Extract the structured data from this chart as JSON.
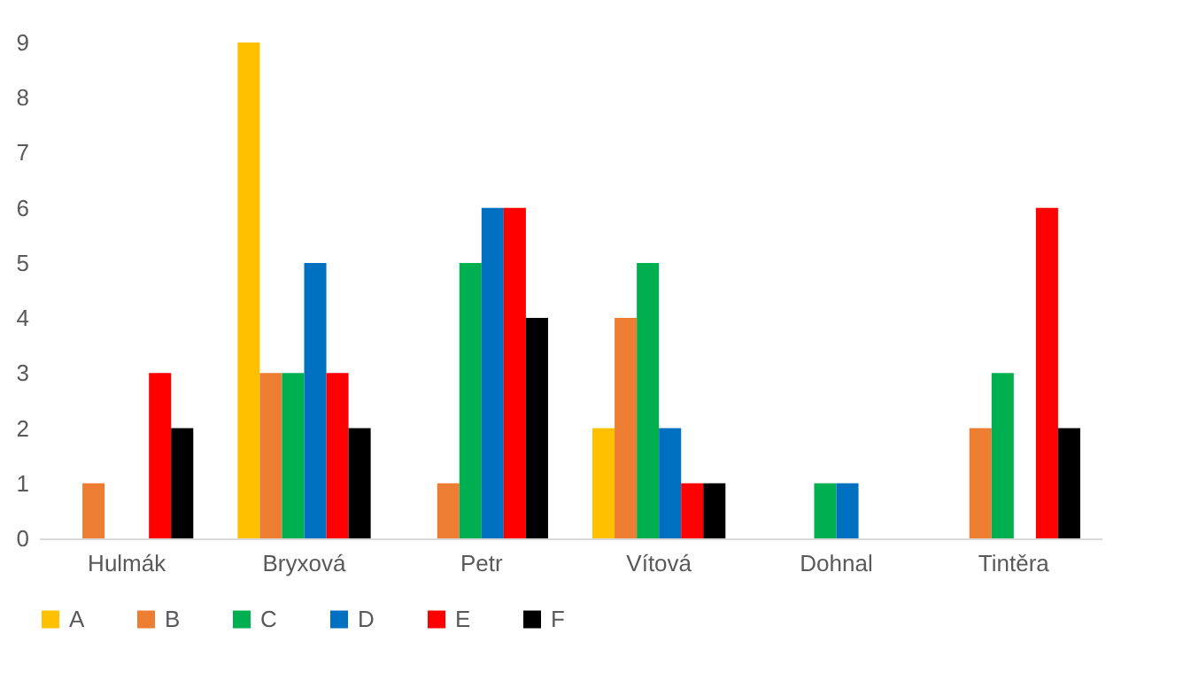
{
  "chart_data": {
    "type": "bar",
    "categories": [
      "Hulmák",
      "Bryxová",
      "Petr",
      "Vítová",
      "Dohnal",
      "Tintěra"
    ],
    "series": [
      {
        "name": "A",
        "color": "#ffc000",
        "values": [
          0,
          9,
          0,
          2,
          0,
          0
        ]
      },
      {
        "name": "B",
        "color": "#ed7d31",
        "values": [
          1,
          3,
          1,
          4,
          0,
          2
        ]
      },
      {
        "name": "C",
        "color": "#00b050",
        "values": [
          0,
          3,
          5,
          5,
          1,
          3
        ]
      },
      {
        "name": "D",
        "color": "#0070c0",
        "values": [
          0,
          5,
          6,
          2,
          1,
          0
        ]
      },
      {
        "name": "E",
        "color": "#ff0000",
        "values": [
          3,
          3,
          6,
          1,
          0,
          6
        ]
      },
      {
        "name": "F",
        "color": "#000000",
        "values": [
          2,
          2,
          4,
          1,
          0,
          2
        ]
      }
    ],
    "ylim": [
      0,
      9
    ],
    "yticks": [
      0,
      1,
      2,
      3,
      4,
      5,
      6,
      7,
      8,
      9
    ],
    "grid": false,
    "legend": "bottom"
  }
}
